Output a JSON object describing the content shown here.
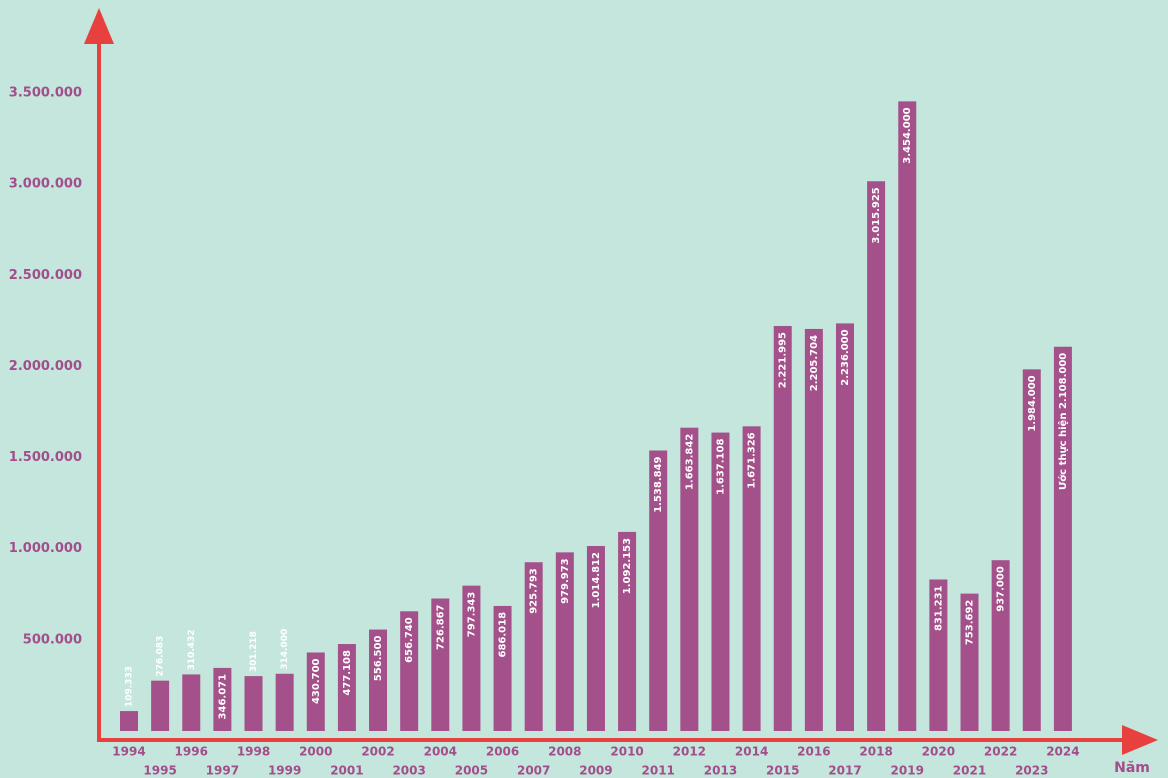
{
  "chart_data": {
    "type": "bar",
    "x_label": "Năm",
    "categories": [
      "1994",
      "1995",
      "1996",
      "1997",
      "1998",
      "1999",
      "2000",
      "2001",
      "2002",
      "2003",
      "2004",
      "2005",
      "2006",
      "2007",
      "2008",
      "2009",
      "2010",
      "2011",
      "2012",
      "2013",
      "2014",
      "2015",
      "2016",
      "2017",
      "2018",
      "2019",
      "2020",
      "2021",
      "2022",
      "2023",
      "2024"
    ],
    "values": [
      109333,
      276083,
      310432,
      346071,
      301218,
      314000,
      430700,
      477108,
      556500,
      656740,
      726867,
      797343,
      686018,
      925793,
      979973,
      1014812,
      1092153,
      1538849,
      1663842,
      1637108,
      1671326,
      2221995,
      2205704,
      2236000,
      3015925,
      3454000,
      831231,
      753692,
      937000,
      1984000,
      2108000
    ],
    "value_labels": [
      "109.333",
      "276.083",
      "310.432",
      "346.071",
      "301.218",
      "314.000",
      "430.700",
      "477.108",
      "556.500",
      "656.740",
      "726.867",
      "797.343",
      "686.018",
      "925.793",
      "979.973",
      "1.014.812",
      "1.092.153",
      "1.538.849",
      "1.663.842",
      "1.637.108",
      "1.671.326",
      "2.221.995",
      "2.205.704",
      "2.236.000",
      "3.015.925",
      "3.454.000",
      "831.231",
      "753.692",
      "937.000",
      "1.984.000",
      "Ước thực hiện 2.108.000"
    ],
    "color": "#a4508a",
    "ylim": [
      0,
      3500000
    ],
    "yticks": [
      {
        "value": 500000,
        "label": "500.000"
      },
      {
        "value": 1000000,
        "label": "1.000.000"
      },
      {
        "value": 1500000,
        "label": "1.500.000"
      },
      {
        "value": 2000000,
        "label": "2.000.000"
      },
      {
        "value": 2500000,
        "label": "2.500.000"
      },
      {
        "value": 3000000,
        "label": "3.000.000"
      },
      {
        "value": 3500000,
        "label": "3.500.000"
      }
    ],
    "grid": false
  }
}
